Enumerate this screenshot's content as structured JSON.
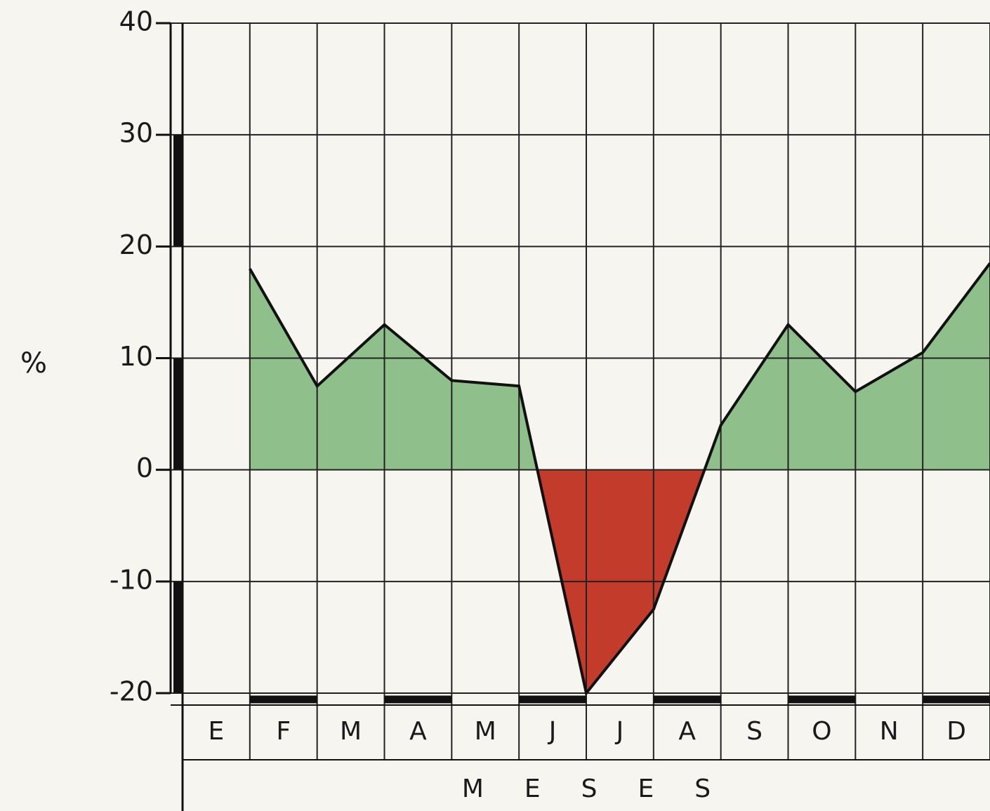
{
  "chart_data": {
    "type": "area",
    "categories": [
      "E",
      "F",
      "M",
      "A",
      "M",
      "J",
      "J",
      "A",
      "S",
      "O",
      "N",
      "D"
    ],
    "values": [
      18,
      7.5,
      13,
      8,
      7.5,
      -20,
      -12.5,
      4,
      13,
      7,
      10.5,
      18.5
    ],
    "positive_color": "#8fbf8a",
    "negative_color": "#c23b2b",
    "line_color": "#111111",
    "ylim": [
      -20,
      40
    ],
    "yticks": [
      40,
      30,
      20,
      10,
      0,
      -10,
      -20
    ],
    "ylabel": "%",
    "xlabel": "MESES",
    "grid": true
  }
}
